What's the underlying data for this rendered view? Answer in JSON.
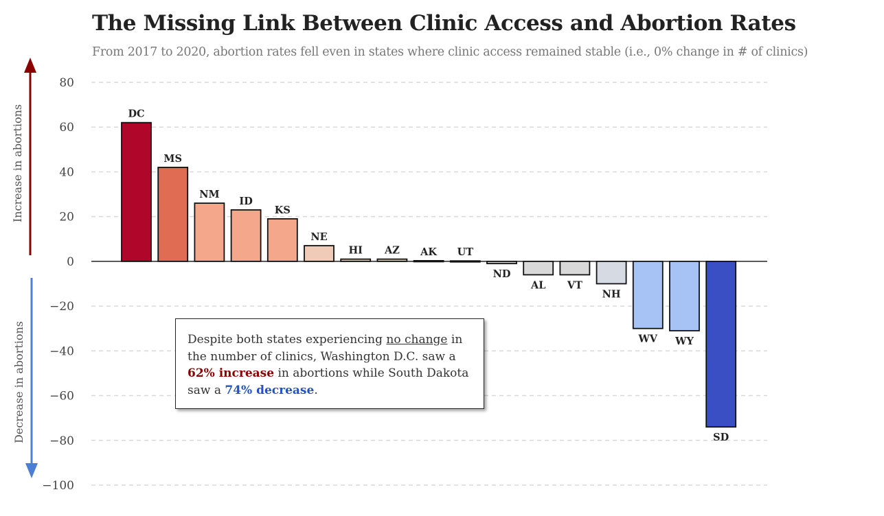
{
  "title": "The Missing Link Between Clinic Access and Abortion Rates",
  "subtitle": "From 2017 to 2020, abortion rates fell even in states where clinic access remained stable (i.e., 0% change in # of clinics)",
  "annotation": {
    "part1": "Despite both states experiencing ",
    "underlined": "no change",
    "part2": " in the number of clinics, Washington D.C. saw a ",
    "increase": "62% increase",
    "part3": " in abortions while South Dakota saw a ",
    "decrease": "74% decrease",
    "part4": "."
  },
  "colors": {
    "increase_arrow": "#8b0000",
    "decrease_arrow": "#4a7fd4",
    "annotation_increase": "#8b0000",
    "annotation_decrease": "#2353c0"
  },
  "chart_data": {
    "type": "bar",
    "categories": [
      "DC",
      "MS",
      "NM",
      "ID",
      "KS",
      "NE",
      "HI",
      "AZ",
      "AK",
      "UT",
      "ND",
      "AL",
      "VT",
      "NH",
      "WV",
      "WY",
      "SD"
    ],
    "values": [
      62,
      42,
      26,
      23,
      19,
      7,
      1,
      1,
      0.3,
      0.2,
      -1,
      -6,
      -6,
      -10,
      -30,
      -31,
      -74
    ],
    "bar_colors": [
      "#b0062a",
      "#e06c54",
      "#f4a78a",
      "#f4a78a",
      "#f4a78a",
      "#f0cbb8",
      "#f0cbb8",
      "#f0cbb8",
      "#dddddd",
      "#dddddd",
      "#d4d4d4",
      "#d9d9d9",
      "#d9d9d9",
      "#d6dbe3",
      "#a7c3f5",
      "#a7c3f5",
      "#3a4fc4"
    ],
    "ylim": [
      -100,
      80
    ],
    "yticks": [
      80,
      60,
      40,
      20,
      0,
      -20,
      -40,
      -60,
      -80,
      -100
    ],
    "ytick_labels": [
      "80",
      "60",
      "40",
      "20",
      "0",
      "−20",
      "−40",
      "−60",
      "−80",
      "−100"
    ],
    "ylabel_top": "Increase in abortions",
    "ylabel_bottom": "Decrease in abortions",
    "grid": true
  }
}
